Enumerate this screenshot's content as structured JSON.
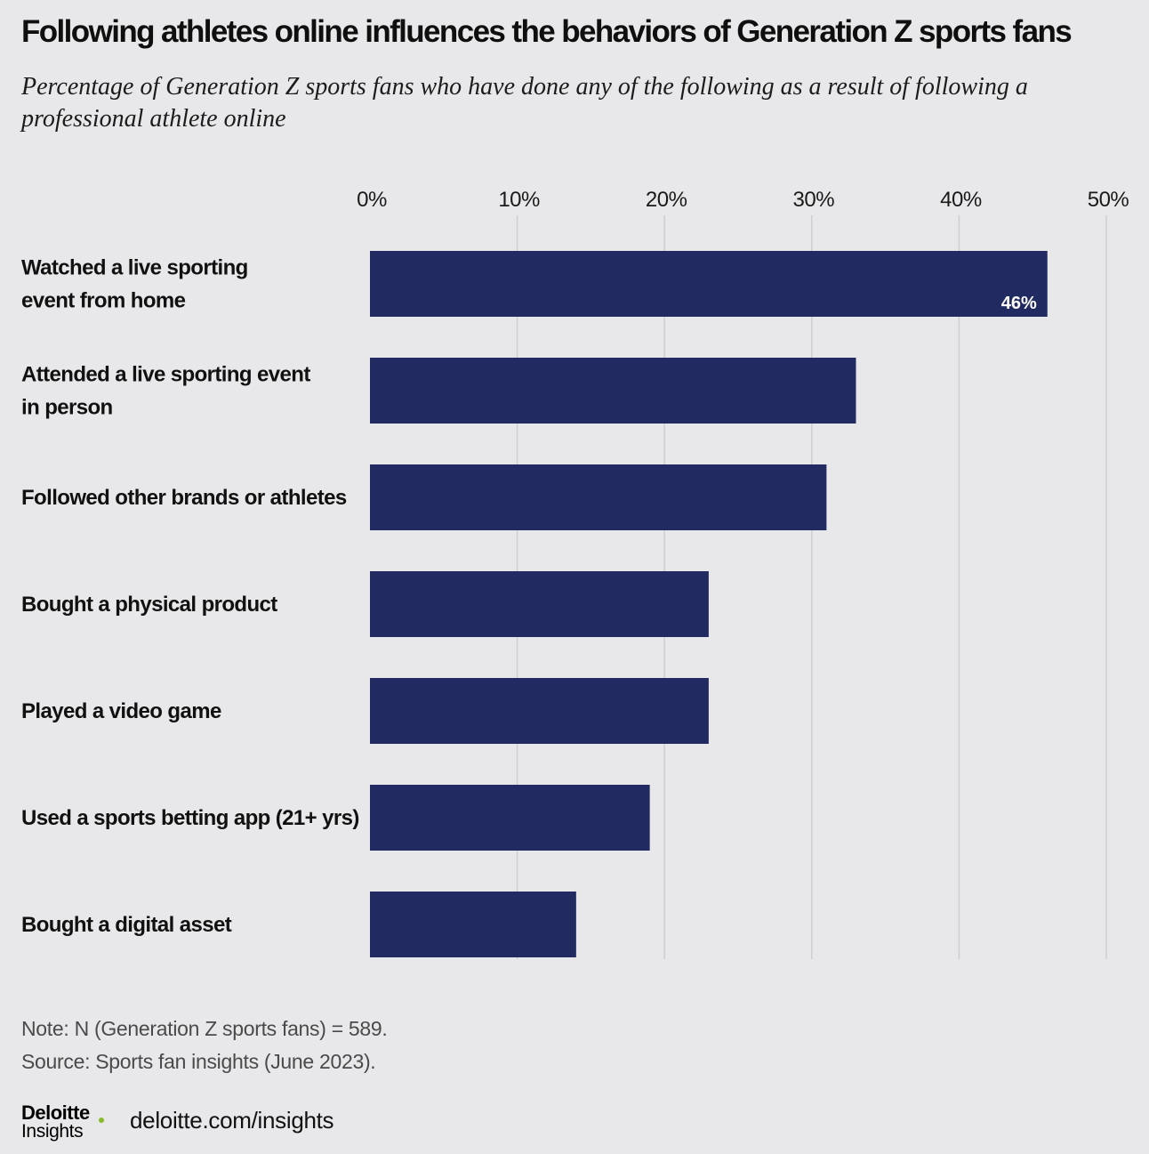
{
  "header": {
    "title": "Following athletes online influences the behaviors of Generation Z sports fans",
    "subtitle": "Percentage of Generation Z sports fans who have done any of the following as a result of following a professional athlete online"
  },
  "chart_data": {
    "type": "bar",
    "orientation": "horizontal",
    "categories": [
      "Watched a live sporting event from home",
      "Attended a live sporting event in person",
      "Followed other brands or athletes",
      "Bought a physical product",
      "Played a video game",
      "Used a sports betting app (21+ yrs)",
      "Bought a digital asset"
    ],
    "category_lines": [
      [
        "Watched a live sporting",
        "event from home"
      ],
      [
        "Attended a live sporting event",
        "in person"
      ],
      [
        "Followed other brands or athletes"
      ],
      [
        "Bought a physical product"
      ],
      [
        "Played a video game"
      ],
      [
        "Used a sports betting app (21+ yrs)"
      ],
      [
        "Bought a digital asset"
      ]
    ],
    "values": [
      46,
      33,
      31,
      23,
      23,
      19,
      14
    ],
    "data_labels": [
      "46%",
      "",
      "",
      "",
      "",
      "",
      ""
    ],
    "xlim": [
      0,
      50
    ],
    "ticks": [
      0,
      10,
      20,
      30,
      40,
      50
    ],
    "tick_labels": [
      "0%",
      "10%",
      "20%",
      "30%",
      "40%",
      "50%"
    ],
    "axis_position": "top",
    "grid": true,
    "bar_color": "#222b61",
    "grid_color": "#cfced3"
  },
  "footer": {
    "note": "Note: N (Generation Z sports fans) = 589.",
    "source": "Source: Sports fan insights (June 2023).",
    "logo_main": "Deloitte",
    "logo_sub": "Insights",
    "logo_dot_color": "#86bc25",
    "site": "deloitte.com/insights"
  }
}
